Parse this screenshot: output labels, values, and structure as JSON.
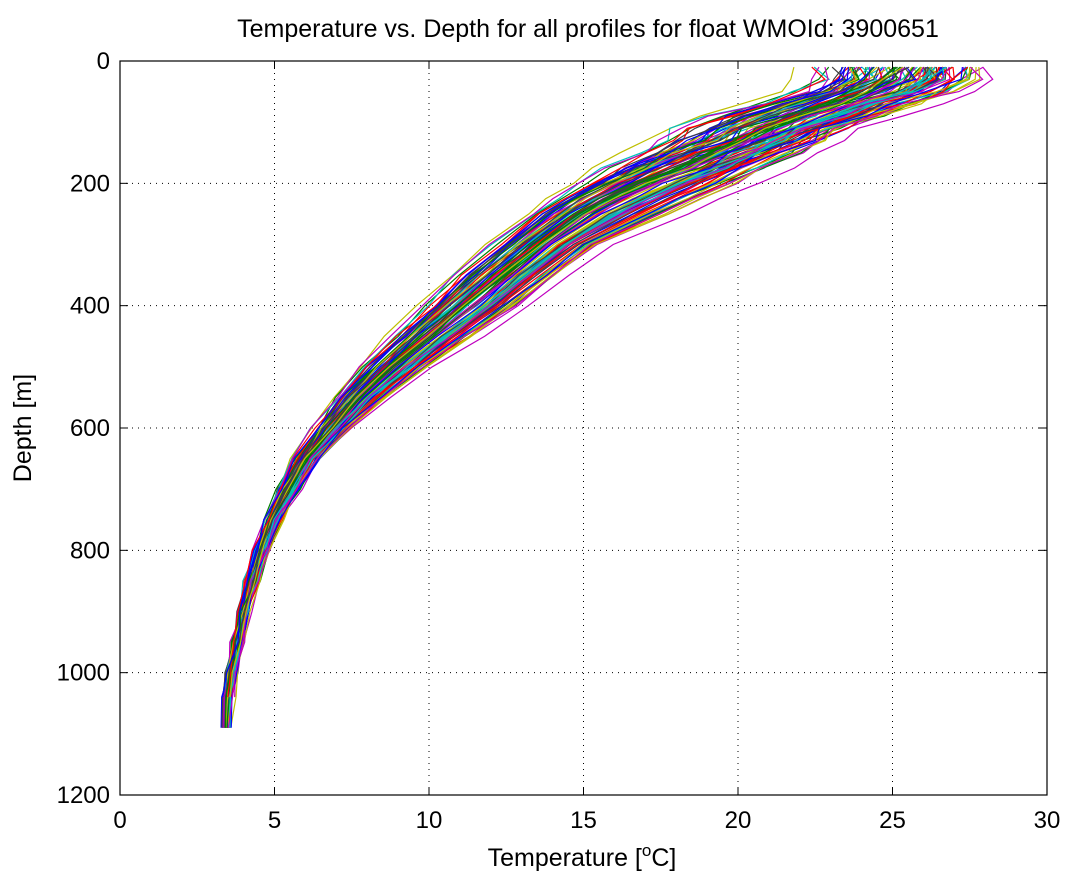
{
  "chart_data": {
    "type": "line",
    "title": "Temperature vs. Depth for all profiles for float WMOId: 3900651",
    "xlabel": "Temperature [",
    "xlabel_unit_sup": "o",
    "xlabel_unit_suffix": "C]",
    "ylabel": "Depth [m]",
    "xlim": [
      0,
      30
    ],
    "ylim": [
      0,
      1200
    ],
    "y_reversed": true,
    "grid": true,
    "x_ticks": [
      0,
      5,
      10,
      15,
      20,
      25,
      30
    ],
    "y_ticks": [
      0,
      200,
      400,
      600,
      800,
      1000,
      1200
    ],
    "x_tick_labels": [
      "0",
      "5",
      "10",
      "15",
      "20",
      "25",
      "30"
    ],
    "y_tick_labels": [
      "0",
      "200",
      "400",
      "600",
      "800",
      "1000",
      "1200"
    ],
    "series_colors": [
      "#0000ff",
      "#008000",
      "#ff0000",
      "#00bfbf",
      "#bf00bf",
      "#bfbf00",
      "#404040"
    ],
    "series_count_approx": 120,
    "envelope": {
      "depth": [
        10,
        30,
        50,
        70,
        90,
        110,
        130,
        150,
        175,
        200,
        225,
        250,
        300,
        350,
        400,
        450,
        500,
        550,
        600,
        650,
        700,
        750,
        800,
        850,
        900,
        950,
        1000,
        1040,
        1090
      ],
      "warmest_profile": [
        28.8,
        28.7,
        28.0,
        27.0,
        25.8,
        24.6,
        23.9,
        23.2,
        22.3,
        21.3,
        20.2,
        19.0,
        16.3,
        14.9,
        13.6,
        12.0,
        10.4,
        9.0,
        7.7,
        6.6,
        5.9,
        5.3,
        4.8,
        4.5,
        4.2,
        4.0,
        3.8,
        3.7,
        3.7
      ],
      "typical_profile": [
        25.5,
        25.3,
        24.5,
        23.3,
        22.3,
        21.3,
        20.4,
        19.5,
        18.3,
        17.1,
        16.0,
        15.1,
        13.7,
        12.5,
        11.3,
        10.1,
        8.9,
        7.8,
        6.9,
        6.1,
        5.5,
        5.0,
        4.6,
        4.3,
        4.0,
        3.8,
        3.6,
        3.5,
        3.6
      ],
      "coolest_profile": [
        21.0,
        21.0,
        20.5,
        19.3,
        17.5,
        16.6,
        16.2,
        15.5,
        14.5,
        13.9,
        13.2,
        12.5,
        11.3,
        10.1,
        9.2,
        8.2,
        7.3,
        6.6,
        6.0,
        5.4,
        4.9,
        4.5,
        4.2,
        4.0,
        3.8,
        3.6,
        3.4,
        3.3,
        3.4
      ]
    }
  }
}
